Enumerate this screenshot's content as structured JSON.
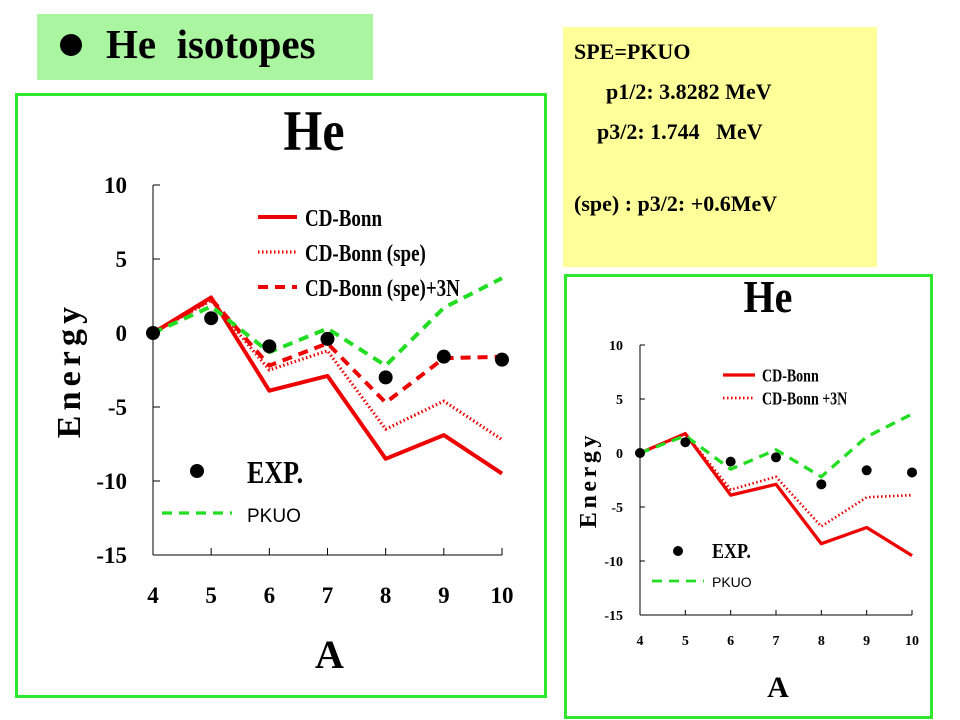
{
  "title": {
    "text": "He  isotopes"
  },
  "info": {
    "lines": [
      "SPE=PKUO",
      "p1/2: 3.8282 MeV",
      "p3/2: 1.744   MeV",
      "(spe) : p3/2: +0.6MeV"
    ]
  },
  "colors": {
    "green_frame": "#2ee82e",
    "title_bg": "#a9f5a0",
    "info_bg": "#ffff99",
    "red": "#ee0000",
    "pkuo_green": "#22dd22"
  },
  "chart_data": [
    {
      "type": "line",
      "title": "He",
      "xlabel": "A",
      "ylabel": "Energy",
      "x": [
        4,
        5,
        6,
        7,
        8,
        9,
        10
      ],
      "ylim": [
        -15,
        10
      ],
      "yticks": [
        10,
        5,
        0,
        -5,
        -10,
        -15
      ],
      "legend_position": "top-right",
      "series": [
        {
          "name": "CD-Bonn",
          "style": "solid",
          "color": "#ee0000",
          "values": [
            0,
            2.4,
            -3.9,
            -2.9,
            -8.5,
            -6.9,
            -9.5
          ]
        },
        {
          "name": "CD-Bonn (spe)",
          "style": "dotted",
          "color": "#ee0000",
          "values": [
            0,
            2.2,
            -2.5,
            -1.2,
            -6.5,
            -4.6,
            -7.2
          ]
        },
        {
          "name": "CD-Bonn (spe)+3N",
          "style": "dashed",
          "color": "#ee0000",
          "values": [
            0,
            2.3,
            -2.2,
            -0.7,
            -4.7,
            -1.7,
            -1.6
          ]
        },
        {
          "name": "PKUO",
          "style": "dashed",
          "color": "#22dd22",
          "values": [
            0,
            1.8,
            -1.3,
            0.3,
            -2.2,
            1.7,
            3.7
          ]
        },
        {
          "name": "EXP.",
          "style": "points",
          "color": "#000000",
          "values": [
            0,
            1,
            -0.9,
            -0.4,
            -3.0,
            -1.6,
            -1.8
          ]
        }
      ]
    },
    {
      "type": "line",
      "title": "He",
      "xlabel": "A",
      "ylabel": "Energy",
      "x": [
        4,
        5,
        6,
        7,
        8,
        9,
        10
      ],
      "ylim": [
        -15,
        10
      ],
      "yticks": [
        10,
        5,
        0,
        -5,
        -10,
        -15
      ],
      "legend_position": "top-right",
      "series": [
        {
          "name": "CD-Bonn",
          "style": "solid",
          "color": "#ee0000",
          "values": [
            0,
            1.8,
            -3.9,
            -2.9,
            -8.4,
            -6.9,
            -9.5
          ]
        },
        {
          "name": "CD-Bonn +3N",
          "style": "dotted",
          "color": "#ee0000",
          "values": [
            0,
            1.8,
            -3.4,
            -2.2,
            -6.8,
            -4.1,
            -3.9
          ]
        },
        {
          "name": "PKUO",
          "style": "dashed",
          "color": "#22dd22",
          "values": [
            0,
            1.6,
            -1.5,
            0.3,
            -2.2,
            1.5,
            3.6
          ]
        },
        {
          "name": "EXP.",
          "style": "points",
          "color": "#000000",
          "values": [
            0,
            1,
            -0.8,
            -0.4,
            -2.9,
            -1.6,
            -1.8
          ]
        }
      ]
    }
  ]
}
